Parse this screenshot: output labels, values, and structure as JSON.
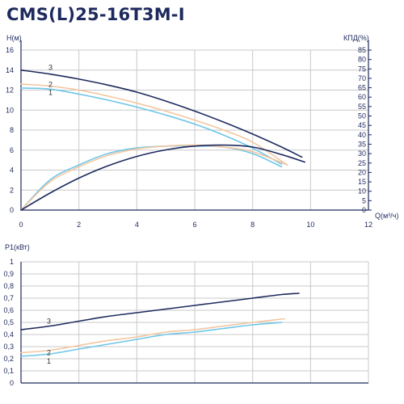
{
  "title": "CMS(L)25-16T3M-I",
  "colors": {
    "curve1": "#6ec6e8",
    "curve2": "#f2c6a0",
    "curve3": "#1e2a5e",
    "axis": "#1e2a5e",
    "grid": "#c8c8c8"
  },
  "chart_data": [
    {
      "type": "line",
      "name": "head-efficiency",
      "x_ticks": [
        "0",
        "2",
        "4",
        "6",
        "8",
        "10",
        "12"
      ],
      "y_ticks": [
        "0",
        "2",
        "4",
        "6",
        "8",
        "10",
        "12",
        "14",
        "16"
      ],
      "y2_ticks": [
        "0",
        "5",
        "10",
        "15",
        "20",
        "25",
        "30",
        "35",
        "40",
        "45",
        "50",
        "55",
        "60",
        "65",
        "70",
        "75",
        "80",
        "85"
      ],
      "xlabel": "Q(м³/ч)",
      "ylabel": "H(м)",
      "y2label": "КПД(%)",
      "xlim": [
        0,
        12
      ],
      "ylim": [
        0,
        16
      ],
      "y2lim": [
        0,
        85
      ],
      "grid": true,
      "head_series": [
        {
          "name": "1",
          "x": [
            0,
            1,
            2,
            3,
            4,
            5,
            6,
            7,
            8,
            9
          ],
          "y": [
            12.2,
            12.1,
            11.6,
            11.0,
            10.3,
            9.5,
            8.6,
            7.5,
            6.2,
            4.6
          ]
        },
        {
          "name": "2",
          "x": [
            0,
            1,
            2,
            3,
            4,
            5,
            6,
            7,
            8,
            9.2
          ],
          "y": [
            12.6,
            12.4,
            12.0,
            11.4,
            10.7,
            9.9,
            9.0,
            8.0,
            6.8,
            4.5
          ]
        },
        {
          "name": "3",
          "x": [
            0,
            1,
            2,
            3,
            4,
            5,
            6,
            7,
            8,
            9,
            9.7
          ],
          "y": [
            14.0,
            13.6,
            13.1,
            12.5,
            11.8,
            10.9,
            9.9,
            8.8,
            7.6,
            6.3,
            5.3
          ]
        }
      ],
      "efficiency_series": [
        {
          "name": "1",
          "x": [
            0,
            1,
            2,
            3,
            4,
            5,
            6,
            7,
            8,
            9
          ],
          "y": [
            0,
            16,
            24,
            30,
            33,
            34,
            34,
            33.5,
            30,
            23
          ]
        },
        {
          "name": "2",
          "x": [
            0,
            1,
            2,
            3,
            4,
            5,
            6,
            7,
            8,
            9.2
          ],
          "y": [
            0,
            15,
            23,
            29,
            32.5,
            34,
            34.5,
            33.5,
            31,
            24
          ]
        },
        {
          "name": "3",
          "x": [
            0,
            1,
            2,
            3,
            4,
            5,
            6,
            7,
            8,
            9,
            9.8
          ],
          "y": [
            0,
            9,
            17,
            23.5,
            28.5,
            32,
            34,
            34.5,
            33.5,
            29.5,
            25.5
          ]
        }
      ]
    },
    {
      "type": "line",
      "name": "power",
      "y_ticks": [
        "0",
        "0,1",
        "0,2",
        "0,3",
        "0,4",
        "0,5",
        "0,6",
        "0,7",
        "0,8",
        "0,9",
        "1"
      ],
      "ylabel": "P1(кВт)",
      "xlim": [
        0,
        12
      ],
      "ylim": [
        0,
        1
      ],
      "grid": true,
      "series": [
        {
          "name": "1",
          "x": [
            0,
            1,
            2,
            3,
            4,
            5,
            6,
            7,
            8,
            9
          ],
          "y": [
            0.22,
            0.24,
            0.28,
            0.32,
            0.36,
            0.4,
            0.42,
            0.45,
            0.48,
            0.5
          ]
        },
        {
          "name": "2",
          "x": [
            0,
            1,
            2,
            3,
            4,
            5,
            6,
            7,
            8,
            9.1
          ],
          "y": [
            0.25,
            0.27,
            0.31,
            0.35,
            0.38,
            0.42,
            0.44,
            0.47,
            0.5,
            0.53
          ]
        },
        {
          "name": "3",
          "x": [
            0,
            1,
            2,
            3,
            4,
            5,
            6,
            7,
            8,
            9,
            9.6
          ],
          "y": [
            0.44,
            0.47,
            0.51,
            0.55,
            0.58,
            0.61,
            0.64,
            0.67,
            0.7,
            0.73,
            0.74
          ]
        }
      ]
    }
  ]
}
